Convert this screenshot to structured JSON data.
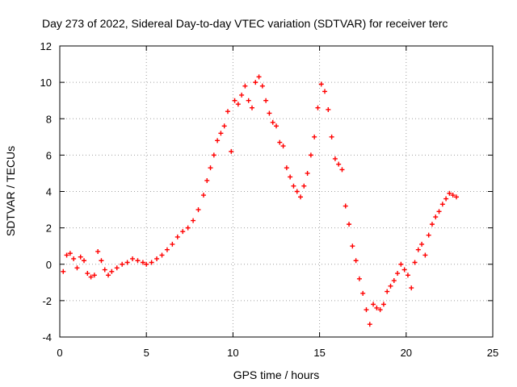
{
  "chart_data": {
    "type": "scatter",
    "title": "Day 273 of 2022, Sidereal Day-to-day VTEC variation (SDTVAR) for receiver terc",
    "xlabel": "GPS time / hours",
    "ylabel": "SDTVAR / TECUs",
    "xlim": [
      0,
      25
    ],
    "ylim": [
      -4,
      12
    ],
    "xticks": [
      0,
      5,
      10,
      15,
      20,
      25
    ],
    "yticks": [
      -4,
      -2,
      0,
      2,
      4,
      6,
      8,
      10,
      12
    ],
    "xtick_labels": [
      "0",
      "5",
      "10",
      "15",
      "20",
      "25"
    ],
    "ytick_labels": [
      "-4",
      "-2",
      "0",
      "2",
      "4",
      "6",
      "8",
      "10",
      "12"
    ],
    "grid": true,
    "marker": "plus",
    "color": "#ff0000",
    "series": [
      {
        "name": "SDTVAR",
        "x": [
          0.2,
          0.4,
          0.6,
          0.8,
          1.0,
          1.2,
          1.4,
          1.6,
          1.8,
          2.0,
          2.2,
          2.4,
          2.6,
          2.8,
          3.0,
          3.3,
          3.6,
          3.9,
          4.2,
          4.5,
          4.8,
          5.0,
          5.3,
          5.6,
          5.9,
          6.2,
          6.5,
          6.8,
          7.1,
          7.4,
          7.7,
          8.0,
          8.3,
          8.5,
          8.7,
          8.9,
          9.1,
          9.3,
          9.5,
          9.7,
          9.9,
          10.1,
          10.3,
          10.5,
          10.7,
          10.9,
          11.1,
          11.3,
          11.5,
          11.7,
          11.9,
          12.1,
          12.3,
          12.5,
          12.7,
          12.9,
          13.1,
          13.3,
          13.5,
          13.7,
          13.9,
          14.1,
          14.3,
          14.5,
          14.7,
          14.9,
          15.1,
          15.3,
          15.5,
          15.7,
          15.9,
          16.1,
          16.3,
          16.5,
          16.7,
          16.9,
          17.1,
          17.3,
          17.5,
          17.7,
          17.9,
          18.1,
          18.3,
          18.5,
          18.7,
          18.9,
          19.1,
          19.3,
          19.5,
          19.7,
          19.9,
          20.1,
          20.3,
          20.5,
          20.7,
          20.9,
          21.1,
          21.3,
          21.5,
          21.7,
          21.9,
          22.1,
          22.3,
          22.5,
          22.7,
          22.9
        ],
        "y": [
          -0.4,
          0.5,
          0.6,
          0.3,
          -0.2,
          0.4,
          0.2,
          -0.5,
          -0.7,
          -0.6,
          0.7,
          0.2,
          -0.3,
          -0.6,
          -0.4,
          -0.2,
          0.0,
          0.1,
          0.3,
          0.2,
          0.1,
          0.0,
          0.1,
          0.3,
          0.5,
          0.8,
          1.1,
          1.5,
          1.8,
          2.0,
          2.4,
          3.0,
          3.8,
          4.6,
          5.3,
          6.0,
          6.8,
          7.2,
          7.6,
          8.4,
          6.2,
          9.0,
          8.8,
          9.3,
          9.8,
          9.0,
          8.6,
          10.0,
          10.3,
          9.8,
          9.0,
          8.3,
          7.8,
          7.6,
          6.7,
          6.5,
          5.3,
          4.8,
          4.3,
          4.0,
          3.7,
          4.3,
          5.0,
          6.0,
          7.0,
          8.6,
          9.9,
          9.5,
          8.5,
          7.0,
          5.8,
          5.5,
          5.2,
          3.2,
          2.2,
          1.0,
          0.2,
          -0.8,
          -1.6,
          -2.5,
          -3.3,
          -2.2,
          -2.4,
          -2.5,
          -2.2,
          -1.5,
          -1.2,
          -0.9,
          -0.5,
          0.0,
          -0.3,
          -0.6,
          -1.3,
          0.1,
          0.8,
          1.1,
          0.5,
          1.6,
          2.2,
          2.6,
          2.9,
          3.3,
          3.6,
          3.9,
          3.8,
          3.7
        ]
      }
    ]
  }
}
